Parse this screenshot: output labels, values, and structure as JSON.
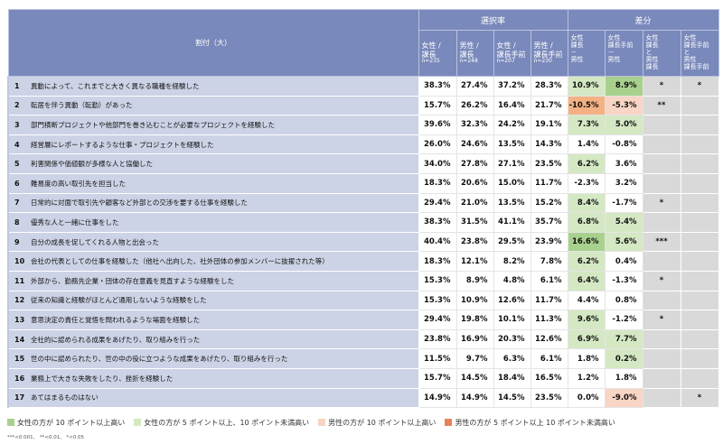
{
  "header": {
    "label_col": "割付（大）",
    "group1": "選択率",
    "group2": "差分",
    "cols": [
      {
        "l1": "女性 /",
        "l2": "課長",
        "n": "n=235"
      },
      {
        "l1": "男性 /",
        "l2": "課長",
        "n": "n=248"
      },
      {
        "l1": "女性 /",
        "l2": "課長手前",
        "n": "n=207"
      },
      {
        "l1": "男性 /",
        "l2": "課長手前",
        "n": "n=230"
      }
    ],
    "diff_cols": [
      "女性\n課長\n－\n男性",
      "女性\n課長手前\n－\n男性",
      "女性\n課長\nと\n男性\n課長",
      "女性\n課長手前\nと\n男性\n課長手前"
    ]
  },
  "rows": [
    {
      "no": "1",
      "label": "異動によって、これまでと大きく異なる職種を経験した",
      "v": [
        "38.3%",
        "27.4%",
        "37.2%",
        "28.3%"
      ],
      "d": [
        "10.9%",
        "8.9%"
      ],
      "f": [
        "g1",
        "g2"
      ],
      "s": [
        "*",
        "*"
      ]
    },
    {
      "no": "2",
      "label": "転居を伴う異動（転勤）があった",
      "v": [
        "15.7%",
        "26.2%",
        "16.4%",
        "21.7%"
      ],
      "d": [
        "-10.5%",
        "-5.3%"
      ],
      "f": [
        "r2",
        "r1"
      ],
      "s": [
        "**",
        ""
      ]
    },
    {
      "no": "3",
      "label": "部門横断プロジェクトや他部門を巻き込むことが必要なプロジェクトを経験した",
      "v": [
        "39.6%",
        "32.3%",
        "24.2%",
        "19.1%"
      ],
      "d": [
        "7.3%",
        "5.0%"
      ],
      "f": [
        "g1",
        "g1"
      ],
      "s": [
        "",
        ""
      ]
    },
    {
      "no": "4",
      "label": "経営層にレポートするような仕事・プロジェクトを経験した",
      "v": [
        "26.0%",
        "24.6%",
        "13.5%",
        "14.3%"
      ],
      "d": [
        "1.4%",
        "-0.8%"
      ],
      "f": [
        "",
        ""
      ],
      "s": [
        "",
        ""
      ]
    },
    {
      "no": "5",
      "label": "利害関係や価値観が多様な人と協働した",
      "v": [
        "34.0%",
        "27.8%",
        "27.1%",
        "23.5%"
      ],
      "d": [
        "6.2%",
        "3.6%"
      ],
      "f": [
        "g1",
        ""
      ],
      "s": [
        "",
        ""
      ]
    },
    {
      "no": "6",
      "label": "難易度の高い取引先を担当した",
      "v": [
        "18.3%",
        "20.6%",
        "15.0%",
        "11.7%"
      ],
      "d": [
        "-2.3%",
        "3.2%"
      ],
      "f": [
        "",
        ""
      ],
      "s": [
        "",
        ""
      ]
    },
    {
      "no": "7",
      "label": "日常的に対面で取引先や顧客など外部との交渉を要する仕事を経験した",
      "v": [
        "29.4%",
        "21.0%",
        "13.5%",
        "15.2%"
      ],
      "d": [
        "8.4%",
        "-1.7%"
      ],
      "f": [
        "g1",
        ""
      ],
      "s": [
        "*",
        ""
      ]
    },
    {
      "no": "8",
      "label": "優秀な人と一緒に仕事をした",
      "v": [
        "38.3%",
        "31.5%",
        "41.1%",
        "35.7%"
      ],
      "d": [
        "6.8%",
        "5.4%"
      ],
      "f": [
        "g1",
        "g1"
      ],
      "s": [
        "",
        ""
      ]
    },
    {
      "no": "9",
      "label": "自分の成長を促してくれる人物と出会った",
      "v": [
        "40.4%",
        "23.8%",
        "29.5%",
        "23.9%"
      ],
      "d": [
        "16.6%",
        "5.6%"
      ],
      "f": [
        "g2",
        "g1"
      ],
      "s": [
        "***",
        ""
      ]
    },
    {
      "no": "10",
      "label": "会社の代表としての仕事を経験した（他社へ出向した、社外団体の参加メンバーに抜擢された等）",
      "v": [
        "18.3%",
        "12.1%",
        "8.2%",
        "7.8%"
      ],
      "d": [
        "6.2%",
        "0.4%"
      ],
      "f": [
        "g1",
        ""
      ],
      "s": [
        "",
        ""
      ]
    },
    {
      "no": "11",
      "label": "外部から、勤務先企業・団体の存在意義を見直すような経験をした",
      "v": [
        "15.3%",
        "8.9%",
        "4.8%",
        "6.1%"
      ],
      "d": [
        "6.4%",
        "-1.3%"
      ],
      "f": [
        "g1",
        ""
      ],
      "s": [
        "*",
        ""
      ]
    },
    {
      "no": "12",
      "label": "従来の知識と経験がほとんど通用しないような経験をした",
      "v": [
        "15.3%",
        "10.9%",
        "12.6%",
        "11.7%"
      ],
      "d": [
        "4.4%",
        "0.8%"
      ],
      "f": [
        "",
        ""
      ],
      "s": [
        "",
        ""
      ]
    },
    {
      "no": "13",
      "label": "意思決定の責任と覚悟を問われるような場面を経験した",
      "v": [
        "29.4%",
        "19.8%",
        "10.1%",
        "11.3%"
      ],
      "d": [
        "9.6%",
        "-1.2%"
      ],
      "f": [
        "g1",
        ""
      ],
      "s": [
        "*",
        ""
      ]
    },
    {
      "no": "14",
      "label": "全社的に認められる成果をあげたり、取り組みを行った",
      "v": [
        "23.8%",
        "16.9%",
        "20.3%",
        "12.6%"
      ],
      "d": [
        "6.9%",
        "7.7%"
      ],
      "f": [
        "g1",
        "g1"
      ],
      "s": [
        "",
        ""
      ]
    },
    {
      "no": "15",
      "label": "世の中に認められたり、世の中の役に立つような成果をあげたり、取り組みを行った",
      "v": [
        "11.5%",
        "9.7%",
        "6.3%",
        "6.1%"
      ],
      "d": [
        "1.8%",
        "0.2%"
      ],
      "f": [
        "",
        "g1"
      ],
      "s": [
        "",
        ""
      ]
    },
    {
      "no": "16",
      "label": "業務上で大きな失敗をしたり、挫折を経験した",
      "v": [
        "15.7%",
        "14.5%",
        "18.4%",
        "16.5%"
      ],
      "d": [
        "1.2%",
        "1.8%"
      ],
      "f": [
        "",
        ""
      ],
      "s": [
        "",
        ""
      ]
    },
    {
      "no": "17",
      "label": "あてはまるものはない",
      "v": [
        "14.9%",
        "14.9%",
        "14.5%",
        "23.5%"
      ],
      "d": [
        "0.0%",
        "-9.0%"
      ],
      "f": [
        "",
        "r1"
      ],
      "s": [
        "",
        "*"
      ]
    }
  ],
  "legend": [
    {
      "label": "女性の方が 10 ポイント以上高い",
      "color": "#a9d18e"
    },
    {
      "label": "女性の方が 5 ポイント以上、10 ポイント未満高い",
      "color": "#d5e8c4"
    },
    {
      "label": "男性の方が 10 ポイント以上高い",
      "color": "#f8d5c4"
    },
    {
      "label": "男性の方が 5 ポイント以上 10 ポイント未満高い",
      "color": "#e8825a"
    }
  ],
  "note": "***<0.001、 **<0.01、 *<0.05"
}
